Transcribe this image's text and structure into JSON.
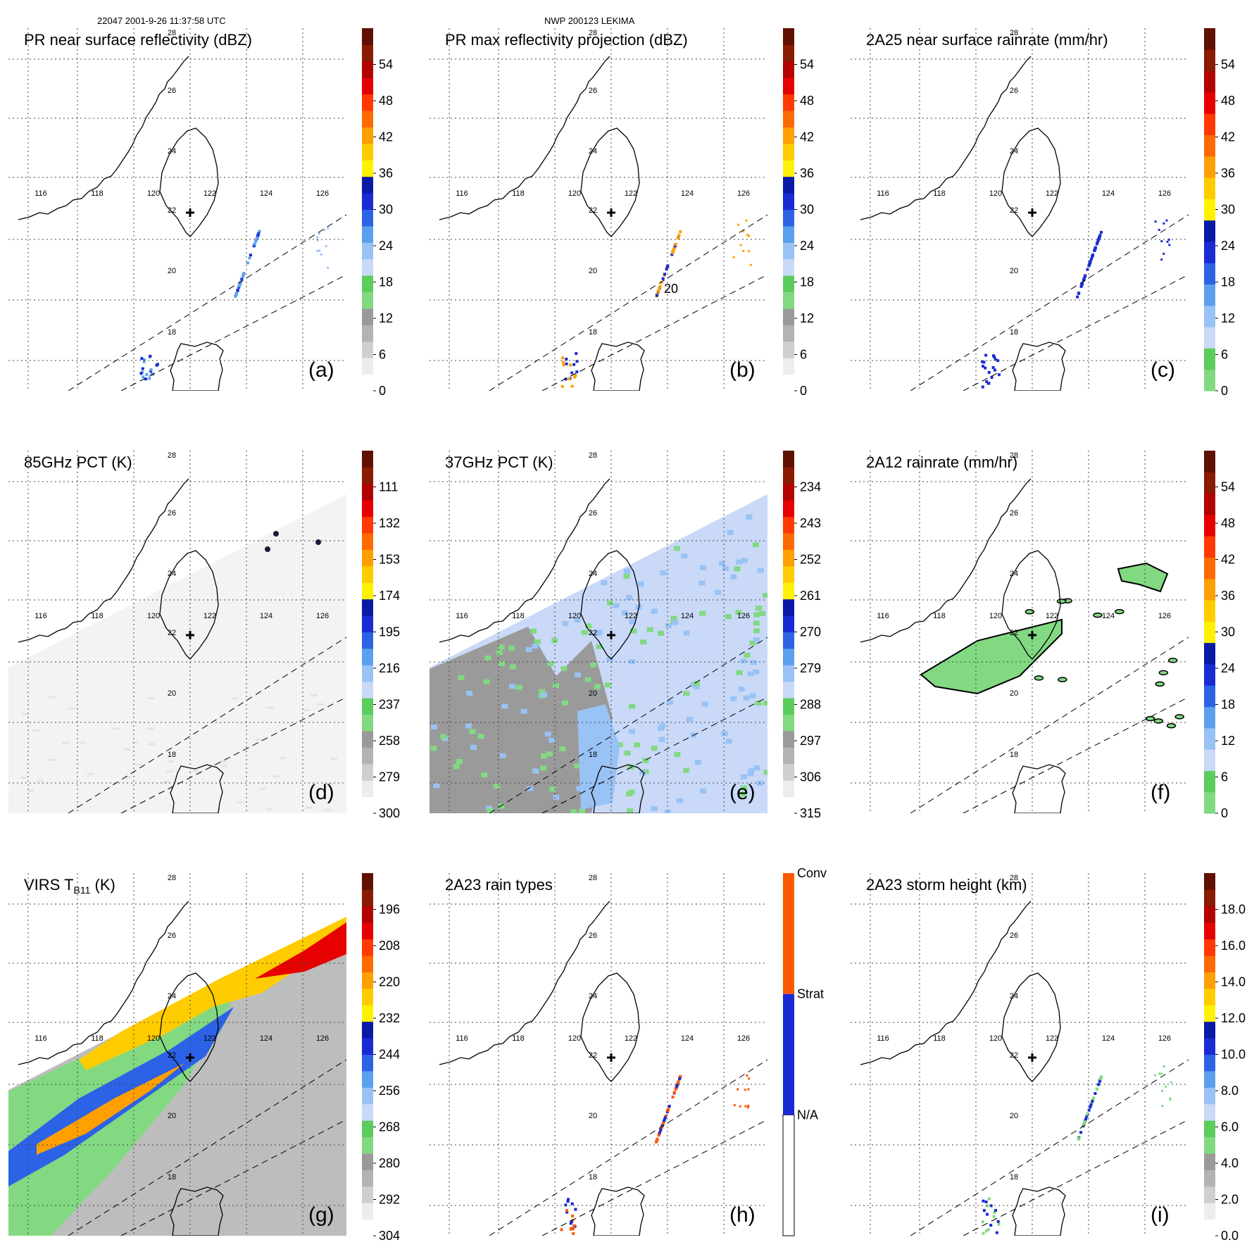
{
  "figure": {
    "header_left": "22047 2001-9-26 11:37:58 UTC",
    "header_center": "NWP 200123 LEKIMA"
  },
  "map": {
    "lon_labels": [
      "116",
      "118",
      "120",
      "122",
      "124",
      "126"
    ],
    "lat_labels": [
      "28",
      "26",
      "24",
      "22",
      "20",
      "18"
    ]
  },
  "chart_data": [
    {
      "type": "heatmap",
      "panel": "(a)",
      "title": "PR near surface reflectivity (dBZ)",
      "colorbar_ticks": [
        "0",
        "6",
        "12",
        "18",
        "24",
        "30",
        "36",
        "42",
        "48",
        "54"
      ],
      "colormap": [
        "#ffffff",
        "#ededed",
        "#cfcfcf",
        "#b3b3b3",
        "#9a9a9a",
        "#82d982",
        "#5ccc5c",
        "#c9d9f7",
        "#99c2f5",
        "#5aa0ee",
        "#2c62e6",
        "#1a2bd4",
        "#0a1aa6",
        "#fff200",
        "#ffcc00",
        "#ff9f00",
        "#ff6a00",
        "#ff3a00",
        "#e60000",
        "#b30000",
        "#8a1a00",
        "#601000"
      ]
    },
    {
      "type": "heatmap",
      "panel": "(b)",
      "title": "PR max reflectivity projection (dBZ)",
      "colorbar_ticks": [
        "0",
        "6",
        "12",
        "18",
        "24",
        "30",
        "36",
        "42",
        "48",
        "54"
      ],
      "colormap": [
        "#ffffff",
        "#ededed",
        "#cfcfcf",
        "#b3b3b3",
        "#9a9a9a",
        "#82d982",
        "#5ccc5c",
        "#c9d9f7",
        "#99c2f5",
        "#5aa0ee",
        "#2c62e6",
        "#1a2bd4",
        "#0a1aa6",
        "#fff200",
        "#ffcc00",
        "#ff9f00",
        "#ff6a00",
        "#ff3a00",
        "#e60000",
        "#b30000",
        "#8a1a00",
        "#601000"
      ],
      "contour_label": "20"
    },
    {
      "type": "heatmap",
      "panel": "(c)",
      "title": "2A25 near surface rainrate (mm/hr)",
      "colorbar_ticks": [
        "0",
        "6",
        "12",
        "18",
        "24",
        "30",
        "36",
        "42",
        "48",
        "54"
      ],
      "colormap": [
        "#82d982",
        "#5ccc5c",
        "#c9d9f7",
        "#99c2f5",
        "#5aa0ee",
        "#2c62e6",
        "#1a2bd4",
        "#0a1aa6",
        "#fff200",
        "#ffcc00",
        "#ff9f00",
        "#ff6a00",
        "#ff3a00",
        "#e60000",
        "#b30000",
        "#8a1a00",
        "#601000"
      ]
    },
    {
      "type": "heatmap",
      "panel": "(d)",
      "title": "85GHz PCT (K)",
      "colorbar_ticks": [
        "300",
        "279",
        "258",
        "237",
        "216",
        "195",
        "174",
        "153",
        "132",
        "111"
      ],
      "colormap": [
        "#ffffff",
        "#ededed",
        "#cfcfcf",
        "#b3b3b3",
        "#9a9a9a",
        "#82d982",
        "#5ccc5c",
        "#c9d9f7",
        "#99c2f5",
        "#5aa0ee",
        "#2c62e6",
        "#1a2bd4",
        "#0a1aa6",
        "#fff200",
        "#ffcc00",
        "#ff9f00",
        "#ff6a00",
        "#ff3a00",
        "#e60000",
        "#b30000",
        "#8a1a00",
        "#601000"
      ]
    },
    {
      "type": "heatmap",
      "panel": "(e)",
      "title": "37GHz PCT (K)",
      "colorbar_ticks": [
        "315",
        "306",
        "297",
        "288",
        "279",
        "270",
        "261",
        "252",
        "243",
        "234"
      ],
      "colormap": [
        "#ffffff",
        "#ededed",
        "#cfcfcf",
        "#b3b3b3",
        "#9a9a9a",
        "#82d982",
        "#5ccc5c",
        "#c9d9f7",
        "#99c2f5",
        "#5aa0ee",
        "#2c62e6",
        "#1a2bd4",
        "#0a1aa6",
        "#fff200",
        "#ffcc00",
        "#ff9f00",
        "#ff6a00",
        "#ff3a00",
        "#e60000",
        "#b30000",
        "#8a1a00",
        "#601000"
      ]
    },
    {
      "type": "heatmap",
      "panel": "(f)",
      "title": "2A12 rainrate (mm/hr)",
      "colorbar_ticks": [
        "0",
        "6",
        "12",
        "18",
        "24",
        "30",
        "36",
        "42",
        "48",
        "54"
      ],
      "colormap": [
        "#82d982",
        "#5ccc5c",
        "#c9d9f7",
        "#99c2f5",
        "#5aa0ee",
        "#2c62e6",
        "#1a2bd4",
        "#0a1aa6",
        "#fff200",
        "#ffcc00",
        "#ff9f00",
        "#ff6a00",
        "#ff3a00",
        "#e60000",
        "#b30000",
        "#8a1a00",
        "#601000"
      ]
    },
    {
      "type": "heatmap",
      "panel": "(g)",
      "title": "VIRS T",
      "title_sub": "B11",
      "title_suffix": " (K)",
      "colorbar_ticks": [
        "304",
        "292",
        "280",
        "268",
        "256",
        "244",
        "232",
        "220",
        "208",
        "196"
      ],
      "colormap": [
        "#ffffff",
        "#ededed",
        "#cfcfcf",
        "#b3b3b3",
        "#9a9a9a",
        "#82d982",
        "#5ccc5c",
        "#c9d9f7",
        "#99c2f5",
        "#5aa0ee",
        "#2c62e6",
        "#1a2bd4",
        "#0a1aa6",
        "#fff200",
        "#ffcc00",
        "#ff9f00",
        "#ff6a00",
        "#ff3a00",
        "#e60000",
        "#b30000",
        "#8a1a00",
        "#601000"
      ]
    },
    {
      "type": "heatmap",
      "panel": "(h)",
      "title": "2A23 rain types",
      "colorbar_ticks": [
        "N/A",
        "Strat",
        "Conv"
      ],
      "categories": [
        "N/A",
        "Strat",
        "Conv"
      ],
      "colormap": [
        "#ffffff",
        "#1a2bd4",
        "#ff5a00"
      ]
    },
    {
      "type": "heatmap",
      "panel": "(i)",
      "title": "2A23 storm height (km)",
      "colorbar_ticks": [
        "0.0",
        "2.0",
        "4.0",
        "6.0",
        "8.0",
        "10.0",
        "12.0",
        "14.0",
        "16.0",
        "18.0"
      ],
      "colormap": [
        "#ffffff",
        "#ededed",
        "#cfcfcf",
        "#b3b3b3",
        "#9a9a9a",
        "#82d982",
        "#5ccc5c",
        "#c9d9f7",
        "#99c2f5",
        "#5aa0ee",
        "#2c62e6",
        "#1a2bd4",
        "#0a1aa6",
        "#fff200",
        "#ffcc00",
        "#ff9f00",
        "#ff6a00",
        "#ff3a00",
        "#e60000",
        "#b30000",
        "#8a1a00",
        "#601000"
      ]
    }
  ]
}
